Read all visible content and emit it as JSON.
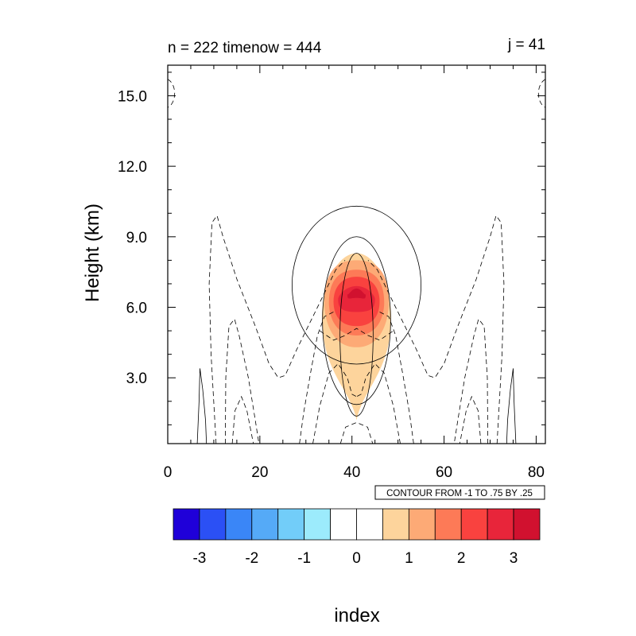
{
  "chart_data": {
    "type": "heatmap",
    "title_left": "n = 222 timenow = 444",
    "title_right": "j = 41",
    "xlabel": "index",
    "ylabel": "Height (km)",
    "xlim": [
      0,
      82
    ],
    "ylim": [
      0.2,
      16.3
    ],
    "x_ticks": [
      "0",
      "20",
      "40",
      "60",
      "80"
    ],
    "x_tick_values": [
      0,
      20,
      40,
      60,
      80
    ],
    "y_ticks": [
      "3.0",
      "6.0",
      "9.0",
      "12.0",
      "15.0"
    ],
    "y_tick_values": [
      3,
      6,
      9,
      12,
      15
    ],
    "contour_info": "CONTOUR FROM -1 TO .75 BY .25",
    "colorbar": {
      "colors": [
        "#1f00d9",
        "#2b50f5",
        "#3a86f7",
        "#55aaf7",
        "#72cdf9",
        "#9cebfc",
        "#ffffff",
        "#ffffff",
        "#fdd49c",
        "#fdaa76",
        "#fd7a57",
        "#f9423f",
        "#e8253a",
        "#d1112f"
      ],
      "labels": [
        "-3",
        "-2",
        "-1",
        "0",
        "1",
        "2",
        "3"
      ],
      "label_values": [
        -3,
        -2,
        -1,
        0,
        1,
        2,
        3
      ]
    },
    "fill_levels": [
      {
        "level": 1,
        "color": "#fdd49c",
        "x_range": [
          33.5,
          48.5
        ],
        "y_range": [
          1.2,
          8.3
        ]
      },
      {
        "level": 1.5,
        "color": "#fdaa76",
        "x_range": [
          34,
          48
        ],
        "y_range": [
          4.3,
          8.0
        ]
      },
      {
        "level": 2,
        "color": "#fd7a57",
        "x_range": [
          35,
          47
        ],
        "y_range": [
          4.8,
          7.6
        ]
      },
      {
        "level": 2.5,
        "color": "#f9423f",
        "x_range": [
          36,
          46
        ],
        "y_range": [
          5.2,
          7.3
        ]
      },
      {
        "level": 3,
        "color": "#e8253a",
        "x_range": [
          37,
          45
        ],
        "y_range": [
          5.8,
          6.9
        ]
      },
      {
        "level": 3.5,
        "color": "#d1112f",
        "x_range": [
          39,
          43
        ],
        "y_range": [
          6.4,
          6.8
        ]
      }
    ]
  }
}
